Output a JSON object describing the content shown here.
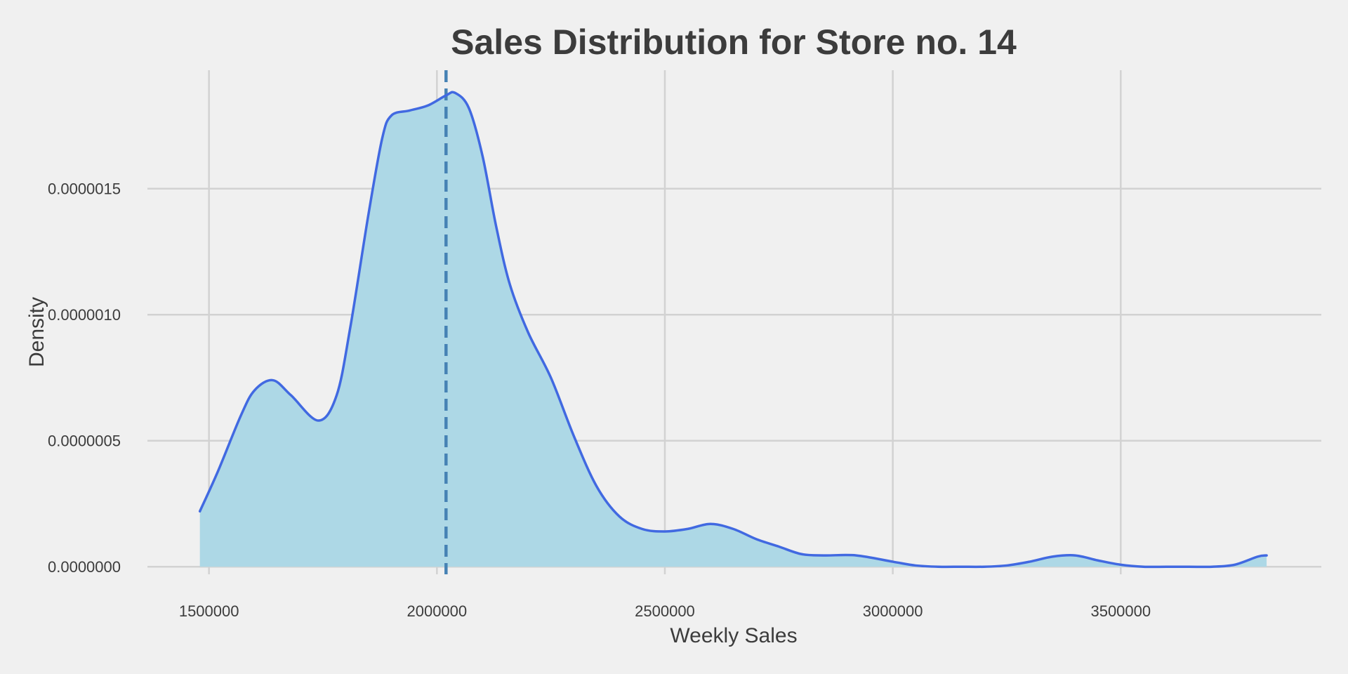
{
  "chart_data": {
    "type": "area",
    "title": "Sales Distribution for Store no. 14",
    "xlabel": "Weekly Sales",
    "ylabel": "Density",
    "xlim": [
      1365000,
      3940000
    ],
    "ylim": [
      -3e-08,
      1.97e-06
    ],
    "x_ticks": [
      1500000,
      2000000,
      2500000,
      3000000,
      3500000
    ],
    "x_tick_labels": [
      "1500000",
      "2000000",
      "2500000",
      "3000000",
      "3500000"
    ],
    "y_ticks": [
      0,
      5e-07,
      1e-06,
      1.5e-06
    ],
    "y_tick_labels": [
      "0.0000000",
      "0.0000005",
      "0.0000010",
      "0.0000015"
    ],
    "grid": true,
    "mean_line_x": 2020000,
    "series": [
      {
        "x": [
          1480000,
          1520000,
          1570000,
          1600000,
          1640000,
          1680000,
          1740000,
          1780000,
          1810000,
          1850000,
          1880000,
          1900000,
          1940000,
          1980000,
          2020000,
          2040000,
          2070000,
          2100000,
          2130000,
          2160000,
          2200000,
          2250000,
          2300000,
          2350000,
          2400000,
          2450000,
          2500000,
          2550000,
          2600000,
          2650000,
          2700000,
          2750000,
          2800000,
          2850000,
          2920000,
          3000000,
          3050000,
          3100000,
          3150000,
          3200000,
          3250000,
          3300000,
          3350000,
          3400000,
          3450000,
          3500000,
          3550000,
          3600000,
          3650000,
          3700000,
          3750000,
          3800000,
          3820000
        ],
        "y": [
          2.2e-07,
          3.8e-07,
          6e-07,
          7e-07,
          7.4e-07,
          6.8e-07,
          5.8e-07,
          6.8e-07,
          9.5e-07,
          1.4e-06,
          1.7e-06,
          1.79e-06,
          1.81e-06,
          1.83e-06,
          1.87e-06,
          1.88e-06,
          1.82e-06,
          1.63e-06,
          1.35e-06,
          1.12e-06,
          9.3e-07,
          7.5e-07,
          5.2e-07,
          3.2e-07,
          2e-07,
          1.5e-07,
          1.4e-07,
          1.5e-07,
          1.7e-07,
          1.5e-07,
          1.1e-07,
          8e-08,
          5e-08,
          4.5e-08,
          4.5e-08,
          2e-08,
          5e-09,
          0.0,
          0.0,
          0.0,
          5e-09,
          2e-08,
          4e-08,
          4.5e-08,
          2.5e-08,
          8e-09,
          0.0,
          0.0,
          0.0,
          0.0,
          8e-09,
          4e-08,
          4.5e-08
        ]
      }
    ]
  },
  "colors": {
    "background": "#f0f0f0",
    "fill": "#add8e6",
    "line": "#4169e1",
    "mean_line": "#4682b4",
    "grid": "#d2d2d2",
    "text": "#3c3c3c"
  }
}
